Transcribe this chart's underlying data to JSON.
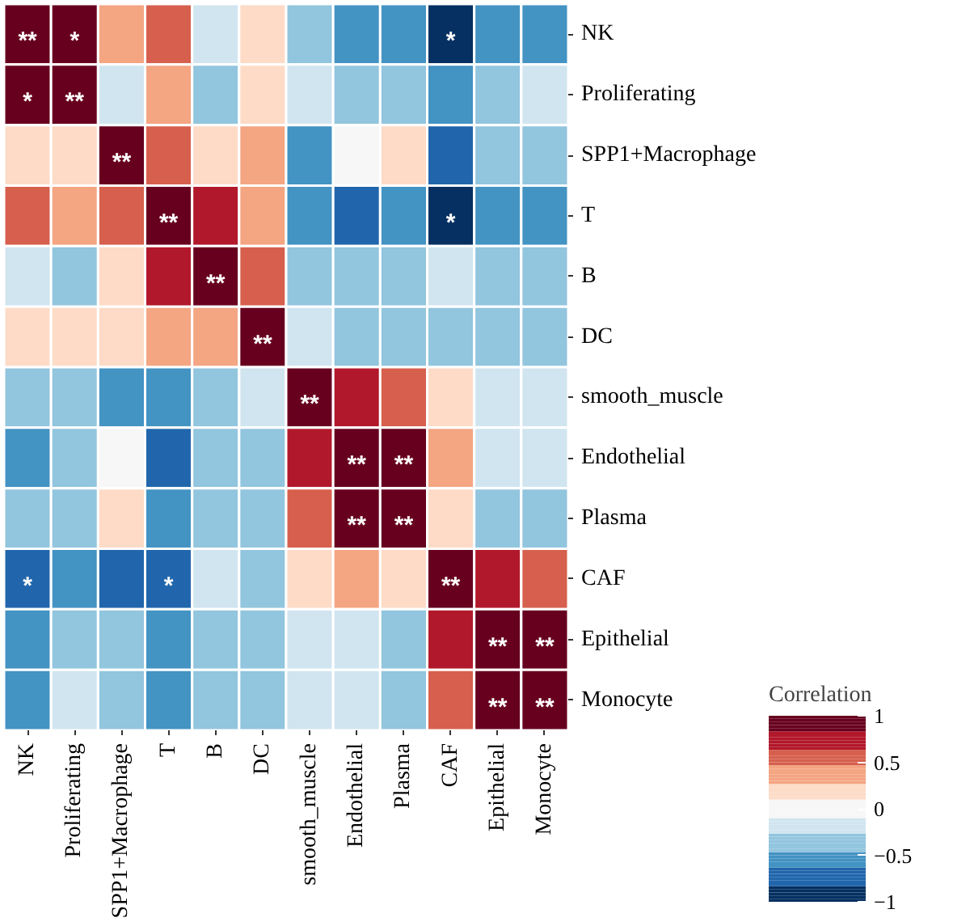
{
  "chart_data": {
    "type": "heatmap",
    "clabel": "Correlation",
    "categories": [
      "NK",
      "Proliferating",
      "SPP1+Macrophage",
      "T",
      "B",
      "DC",
      "smooth_muscle",
      "Endothelial",
      "Plasma",
      "CAF",
      "Epithelial",
      "Monocyte"
    ],
    "y_categories": [
      "NK",
      "Proliferating",
      "SPP1+Macrophage",
      "T",
      "B",
      "DC",
      "smooth_muscle",
      "Endothelial",
      "Plasma",
      "CAF",
      "Epithelial",
      "Monocyte"
    ],
    "cells": [
      [
        1,
        0.85,
        0.3,
        0.55,
        -0.1,
        0.2,
        -0.4,
        -0.6,
        -0.5,
        -0.9,
        -0.6,
        -0.6
      ],
      [
        0.85,
        1,
        -0.1,
        0.3,
        -0.3,
        0.1,
        -0.2,
        -0.4,
        -0.3,
        -0.5,
        -0.4,
        -0.1
      ],
      [
        0.2,
        0.15,
        1,
        0.5,
        0.2,
        0.3,
        -0.5,
        -0.05,
        0.1,
        -0.7,
        -0.4,
        -0.4
      ],
      [
        0.55,
        0.3,
        0.5,
        1,
        0.7,
        0.4,
        -0.6,
        -0.7,
        -0.6,
        -0.85,
        -0.5,
        -0.5
      ],
      [
        -0.1,
        -0.3,
        0.2,
        0.7,
        1,
        0.5,
        -0.3,
        -0.3,
        -0.3,
        -0.2,
        -0.4,
        -0.4
      ],
      [
        0.15,
        0.1,
        0.2,
        0.4,
        0.45,
        1,
        -0.2,
        -0.3,
        -0.3,
        -0.4,
        -0.3,
        -0.3
      ],
      [
        -0.4,
        -0.3,
        -0.5,
        -0.6,
        -0.3,
        -0.2,
        1,
        0.65,
        0.6,
        0.25,
        -0.15,
        -0.1
      ],
      [
        -0.6,
        -0.45,
        -0.05,
        -0.7,
        -0.3,
        -0.3,
        0.65,
        1,
        0.9,
        0.35,
        -0.15,
        -0.2
      ],
      [
        -0.4,
        -0.3,
        0.1,
        -0.6,
        -0.3,
        -0.3,
        0.6,
        0.9,
        1,
        0.1,
        -0.3,
        -0.3
      ],
      [
        -0.8,
        -0.5,
        -0.75,
        -0.8,
        -0.2,
        -0.4,
        0.25,
        0.35,
        0.1,
        1,
        0.7,
        0.55
      ],
      [
        -0.6,
        -0.4,
        -0.4,
        -0.5,
        -0.4,
        -0.3,
        -0.15,
        -0.15,
        -0.3,
        0.7,
        1,
        0.9
      ],
      [
        -0.55,
        -0.15,
        -0.4,
        -0.5,
        -0.35,
        -0.3,
        -0.1,
        -0.2,
        -0.3,
        0.55,
        0.9,
        1
      ]
    ],
    "cell_labels": [
      [
        "**",
        "*",
        null,
        null,
        null,
        null,
        null,
        null,
        null,
        "*",
        null,
        null
      ],
      [
        "*",
        "**",
        null,
        null,
        null,
        null,
        null,
        null,
        null,
        null,
        null,
        null
      ],
      [
        null,
        null,
        "**",
        null,
        null,
        null,
        null,
        null,
        null,
        null,
        null,
        null
      ],
      [
        null,
        null,
        null,
        "**",
        null,
        null,
        null,
        null,
        null,
        "*",
        null,
        null
      ],
      [
        null,
        null,
        null,
        null,
        "**",
        null,
        null,
        null,
        null,
        null,
        null,
        null
      ],
      [
        null,
        null,
        null,
        null,
        null,
        "**",
        null,
        null,
        null,
        null,
        null,
        null
      ],
      [
        null,
        null,
        null,
        null,
        null,
        null,
        "**",
        null,
        null,
        null,
        null,
        null
      ],
      [
        null,
        null,
        null,
        null,
        null,
        null,
        null,
        "**",
        "**",
        null,
        null,
        null
      ],
      [
        null,
        null,
        null,
        null,
        null,
        null,
        null,
        "**",
        "**",
        null,
        null,
        null
      ],
      [
        "*",
        null,
        null,
        "*",
        null,
        null,
        null,
        null,
        null,
        "**",
        null,
        null
      ],
      [
        null,
        null,
        null,
        null,
        null,
        null,
        null,
        null,
        null,
        null,
        "**",
        "**"
      ],
      [
        null,
        null,
        null,
        null,
        null,
        null,
        null,
        null,
        null,
        null,
        "**",
        "**"
      ]
    ],
    "clim": [
      -1,
      1
    ],
    "cticks": [
      1,
      0.5,
      0,
      {
        "value": -0.5,
        "label": "−0.5"
      },
      {
        "value": -1,
        "label": "−1"
      }
    ]
  }
}
